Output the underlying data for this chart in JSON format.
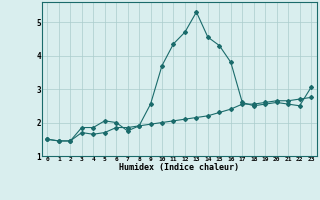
{
  "xlabel": "Humidex (Indice chaleur)",
  "ylabel": "",
  "x": [
    0,
    1,
    2,
    3,
    4,
    5,
    6,
    7,
    8,
    9,
    10,
    11,
    12,
    13,
    14,
    15,
    16,
    17,
    18,
    19,
    20,
    21,
    22,
    23
  ],
  "line1": [
    1.5,
    1.45,
    1.45,
    1.85,
    1.85,
    2.05,
    2.0,
    1.75,
    1.9,
    2.55,
    3.7,
    4.35,
    4.7,
    5.3,
    4.55,
    4.3,
    3.8,
    2.6,
    2.5,
    2.55,
    2.6,
    2.55,
    2.5,
    3.05
  ],
  "line2": [
    1.5,
    1.45,
    1.45,
    1.7,
    1.65,
    1.7,
    1.85,
    1.85,
    1.9,
    1.95,
    2.0,
    2.05,
    2.1,
    2.15,
    2.2,
    2.3,
    2.4,
    2.55,
    2.55,
    2.6,
    2.65,
    2.65,
    2.7,
    2.75
  ],
  "line_color": "#1a6b6b",
  "bg_color": "#d9eeee",
  "grid_color": "#aacccc",
  "ylim": [
    1.0,
    5.6
  ],
  "xlim": [
    -0.5,
    23.5
  ],
  "yticks": [
    1,
    2,
    3,
    4,
    5
  ],
  "xticks": [
    0,
    1,
    2,
    3,
    4,
    5,
    6,
    7,
    8,
    9,
    10,
    11,
    12,
    13,
    14,
    15,
    16,
    17,
    18,
    19,
    20,
    21,
    22,
    23
  ]
}
